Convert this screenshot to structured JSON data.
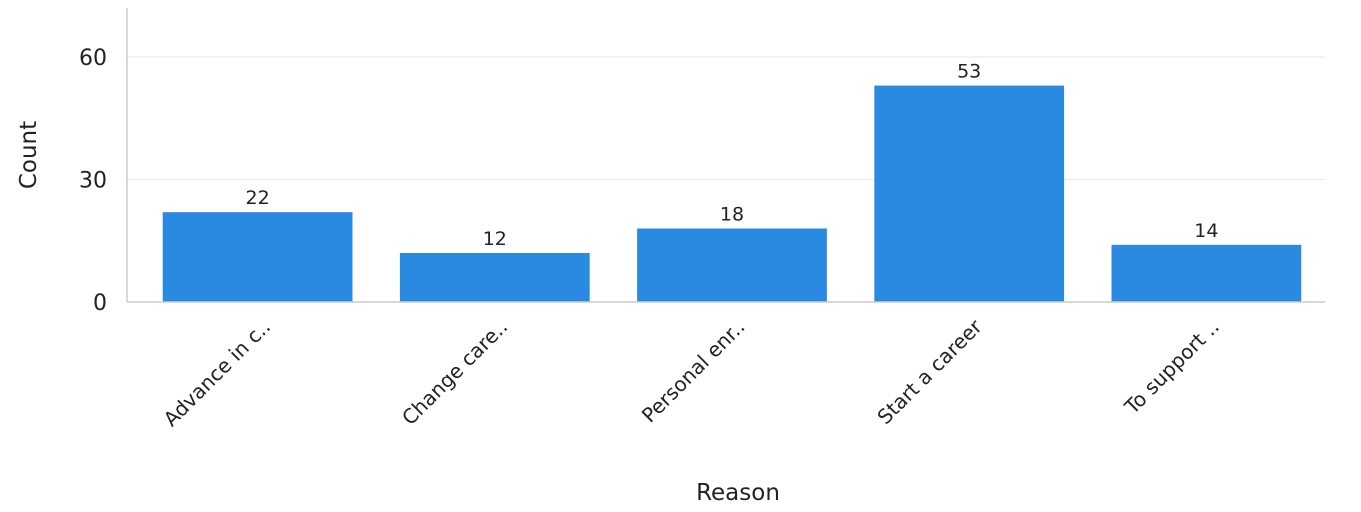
{
  "chart_data": {
    "type": "bar",
    "categories": [
      "Advance in c..",
      "Change care..",
      "Personal enr..",
      "Start a career",
      "To support .."
    ],
    "values": [
      22,
      12,
      18,
      53,
      14
    ],
    "title": "",
    "xlabel": "Reason",
    "ylabel": "Count",
    "ylim": [
      0,
      72
    ],
    "yticks": [
      0,
      30,
      60
    ],
    "grid": true,
    "bar_color": "#2a8ae2",
    "data_labels": true
  }
}
